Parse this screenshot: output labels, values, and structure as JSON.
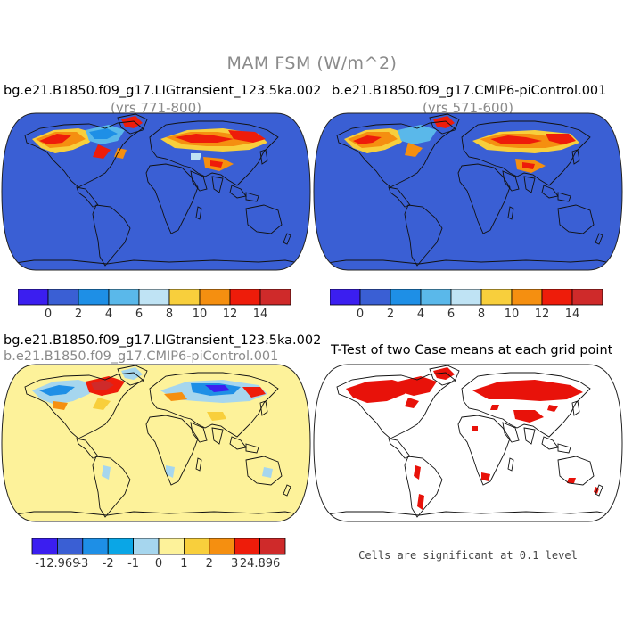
{
  "figure": {
    "title": "MAM FSM (W/m^2)"
  },
  "panels": [
    {
      "id": "top-left",
      "title": "bg.e21.B1850.f09_g17.LIGtransient_123.5ka.002",
      "subtitle": "(yrs 771-800)"
    },
    {
      "id": "top-right",
      "title": "b.e21.B1850.f09_g17.CMIP6-piControl.001",
      "subtitle": "(yrs 571-600)"
    },
    {
      "id": "bottom-left",
      "title": "bg.e21.B1850.f09_g17.LIGtransient_123.5ka.002",
      "subtitle": "b.e21.B1850.f09_g17.CMIP6-piControl.001"
    },
    {
      "id": "bottom-right",
      "title": "T-Test of two Case means at each grid point",
      "note": "Cells are significant at 0.1 level"
    }
  ],
  "colorbars": {
    "absolute": {
      "colors": [
        "#3b1ef0",
        "#3a5fd4",
        "#1e8fe6",
        "#5ab8ea",
        "#bfe3f4",
        "#f8cf3c",
        "#f58f10",
        "#ee1c0a",
        "#cf2a2a"
      ],
      "labels": [
        "0",
        "2",
        "4",
        "6",
        "8",
        "10",
        "12",
        "14"
      ]
    },
    "difference": {
      "colors": [
        "#3b1ef0",
        "#3a5fd4",
        "#1e8fe6",
        "#0aa6e6",
        "#a6d6ee",
        "#fdf29a",
        "#f8cf3c",
        "#f58f10",
        "#ee1c0a",
        "#cf2a2a"
      ],
      "labels": [
        "-12.969",
        "-3",
        "-2",
        "-1",
        "0",
        "1",
        "2",
        "3",
        "24.896"
      ]
    }
  },
  "colors": {
    "ocean_base": "#3a5fd4",
    "diff_base": "#fdf29a",
    "significant": "#e8120a"
  }
}
